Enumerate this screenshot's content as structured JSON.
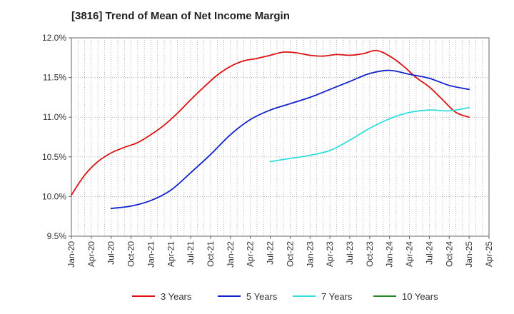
{
  "chart_data": {
    "type": "line",
    "title": "[3816]  Trend of Mean of Net Income Margin",
    "xlabel": "",
    "ylabel": "",
    "x_ticks": [
      "Jan-20",
      "Apr-20",
      "Jul-20",
      "Oct-20",
      "Jan-21",
      "Apr-21",
      "Jul-21",
      "Oct-21",
      "Jan-22",
      "Apr-22",
      "Jul-22",
      "Oct-22",
      "Jan-23",
      "Apr-23",
      "Jul-23",
      "Oct-23",
      "Jan-24",
      "Apr-24",
      "Jul-24",
      "Oct-24",
      "Jan-25",
      "Apr-25"
    ],
    "y_ticks": [
      "9.5%",
      "10.0%",
      "10.5%",
      "11.0%",
      "11.5%",
      "12.0%"
    ],
    "ylim": [
      9.5,
      12.0
    ],
    "grid": true,
    "legend_position": "bottom",
    "series": [
      {
        "name": "3 Years",
        "color": "#dd1111",
        "points": [
          [
            "Jan-20",
            10.02
          ],
          [
            "Mar-20",
            10.27
          ],
          [
            "May-20",
            10.44
          ],
          [
            "Jul-20",
            10.55
          ],
          [
            "Sep-20",
            10.62
          ],
          [
            "Nov-20",
            10.68
          ],
          [
            "Jan-21",
            10.78
          ],
          [
            "Mar-21",
            10.9
          ],
          [
            "May-21",
            11.05
          ],
          [
            "Jul-21",
            11.22
          ],
          [
            "Sep-21",
            11.38
          ],
          [
            "Nov-21",
            11.53
          ],
          [
            "Jan-22",
            11.64
          ],
          [
            "Mar-22",
            11.71
          ],
          [
            "May-22",
            11.74
          ],
          [
            "Jul-22",
            11.78
          ],
          [
            "Sep-22",
            11.82
          ],
          [
            "Nov-22",
            11.81
          ],
          [
            "Jan-23",
            11.78
          ],
          [
            "Mar-23",
            11.77
          ],
          [
            "May-23",
            11.79
          ],
          [
            "Jul-23",
            11.78
          ],
          [
            "Sep-23",
            11.8
          ],
          [
            "Nov-23",
            11.84
          ],
          [
            "Jan-24",
            11.77
          ],
          [
            "Mar-24",
            11.65
          ],
          [
            "May-24",
            11.5
          ],
          [
            "Jul-24",
            11.38
          ],
          [
            "Sep-24",
            11.22
          ],
          [
            "Nov-24",
            11.06
          ],
          [
            "Jan-25",
            11.0
          ]
        ]
      },
      {
        "name": "5 Years",
        "color": "#1122cc",
        "points": [
          [
            "Jul-20",
            9.85
          ],
          [
            "Oct-20",
            9.88
          ],
          [
            "Jan-21",
            9.95
          ],
          [
            "Apr-21",
            10.08
          ],
          [
            "Jul-21",
            10.3
          ],
          [
            "Oct-21",
            10.53
          ],
          [
            "Jan-22",
            10.78
          ],
          [
            "Apr-22",
            10.97
          ],
          [
            "Jul-22",
            11.09
          ],
          [
            "Oct-22",
            11.17
          ],
          [
            "Jan-23",
            11.25
          ],
          [
            "Apr-23",
            11.35
          ],
          [
            "Jul-23",
            11.45
          ],
          [
            "Oct-23",
            11.55
          ],
          [
            "Jan-24",
            11.59
          ],
          [
            "Apr-24",
            11.54
          ],
          [
            "Jul-24",
            11.49
          ],
          [
            "Oct-24",
            11.4
          ],
          [
            "Jan-25",
            11.35
          ]
        ]
      },
      {
        "name": "7 Years",
        "color": "#33dddd",
        "points": [
          [
            "Jul-22",
            10.44
          ],
          [
            "Oct-22",
            10.48
          ],
          [
            "Jan-23",
            10.52
          ],
          [
            "Apr-23",
            10.58
          ],
          [
            "Jul-23",
            10.71
          ],
          [
            "Oct-23",
            10.86
          ],
          [
            "Jan-24",
            10.98
          ],
          [
            "Apr-24",
            11.06
          ],
          [
            "Jul-24",
            11.09
          ],
          [
            "Oct-24",
            11.08
          ],
          [
            "Jan-25",
            11.12
          ]
        ]
      },
      {
        "name": "10 Years",
        "color": "#228822",
        "points": []
      }
    ]
  }
}
